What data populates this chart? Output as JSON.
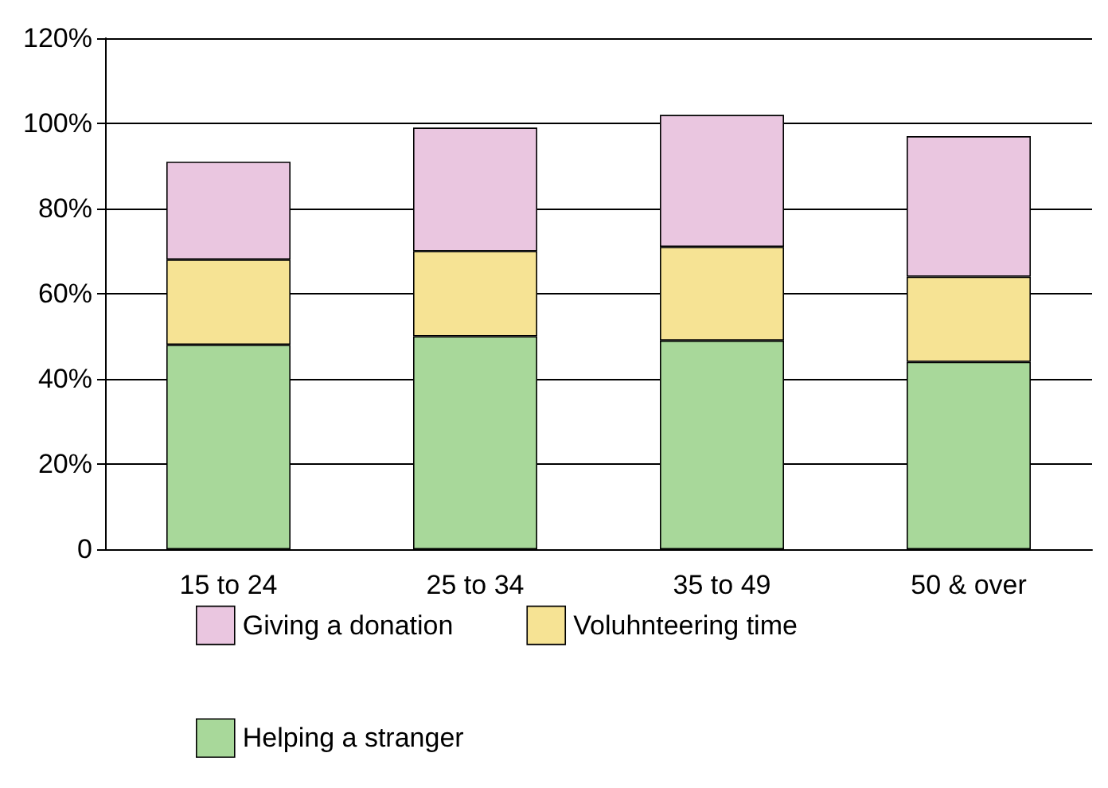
{
  "chart_data": {
    "type": "bar",
    "stacked": true,
    "categories": [
      "15 to 24",
      "25 to 34",
      "35 to 49",
      "50 & over"
    ],
    "series": [
      {
        "name": "Helping a stranger",
        "color": "#a8d89a",
        "values": [
          48,
          50,
          49,
          44
        ]
      },
      {
        "name": "Voluhnteering time",
        "color": "#f6e394",
        "values": [
          20,
          20,
          22,
          20
        ]
      },
      {
        "name": "Giving a donation",
        "color": "#eac6e0",
        "values": [
          23,
          29,
          31,
          33
        ]
      }
    ],
    "ylim": [
      0,
      120
    ],
    "yticks": [
      {
        "value": 0,
        "label": "0"
      },
      {
        "value": 20,
        "label": "20%"
      },
      {
        "value": 40,
        "label": "40%"
      },
      {
        "value": 60,
        "label": "60%"
      },
      {
        "value": 80,
        "label": "80%"
      },
      {
        "value": 100,
        "label": "100%"
      },
      {
        "value": 120,
        "label": "120%"
      }
    ],
    "grid": "y",
    "legend": "bottom"
  }
}
